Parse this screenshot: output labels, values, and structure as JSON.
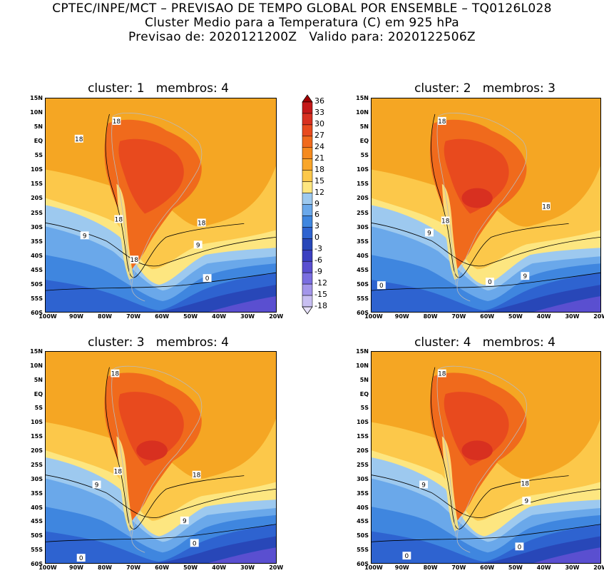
{
  "header": {
    "line1": "CPTEC/INPE/MCT – PREVISAO DE TEMPO GLOBAL POR ENSEMBLE – TQ0126L028",
    "line2": "Cluster Medio para a Temperatura (C) em 925 hPa",
    "line3": "Previsao de: 2020121200Z   Valido para: 2020122506Z"
  },
  "panels": [
    {
      "title": "cluster: 1   membros: 4",
      "labels": [
        "18",
        "18",
        "18",
        "18",
        "9",
        "9",
        "18",
        "0"
      ]
    },
    {
      "title": "cluster: 2   membros: 3",
      "labels": [
        "18",
        "18",
        "18",
        "9",
        "9",
        "0",
        "0"
      ]
    },
    {
      "title": "cluster: 3   membros: 4",
      "labels": [
        "18",
        "18",
        "18",
        "9",
        "9",
        "0",
        "0"
      ]
    },
    {
      "title": "cluster: 4   membros: 4",
      "labels": [
        "18",
        "18",
        "9",
        "9",
        "0",
        "0"
      ]
    }
  ],
  "axes": {
    "lat_labels": [
      "15N",
      "10N",
      "5N",
      "EQ",
      "5S",
      "10S",
      "15S",
      "20S",
      "25S",
      "30S",
      "35S",
      "40S",
      "45S",
      "50S",
      "55S",
      "60S"
    ],
    "lon_labels": [
      "100W",
      "90W",
      "80W",
      "70W",
      "60W",
      "50W",
      "40W",
      "30W",
      "20W"
    ]
  },
  "colorbar": {
    "levels": [
      "36",
      "33",
      "30",
      "27",
      "24",
      "21",
      "18",
      "15",
      "12",
      "9",
      "6",
      "3",
      "0",
      "-3",
      "-6",
      "-9",
      "-12",
      "-15",
      "-18"
    ],
    "colors": [
      "#a00000",
      "#c41818",
      "#d83020",
      "#e84a1e",
      "#f06a1c",
      "#f58a1e",
      "#f9a62a",
      "#fcc84a",
      "#fde680",
      "#9dc9ef",
      "#6aa8ea",
      "#3f86df",
      "#2e63d0",
      "#2847b8",
      "#3b3fc0",
      "#5a4fd0",
      "#7a6ee0",
      "#a396ea",
      "#c8bff2",
      "#e6e0f9"
    ]
  },
  "colors": {
    "warm_orange": "#f5a623",
    "light_orange": "#fcc84a",
    "yellow": "#fde680",
    "light_blue": "#9dc9ef",
    "mid_blue": "#6aa8ea",
    "blue": "#3f86df",
    "deep_blue": "#2e63d0",
    "navy": "#2847b8",
    "purple": "#5a4fd0",
    "red_orange": "#f06a1c",
    "red": "#e84a1e",
    "dark_red": "#d83020"
  }
}
